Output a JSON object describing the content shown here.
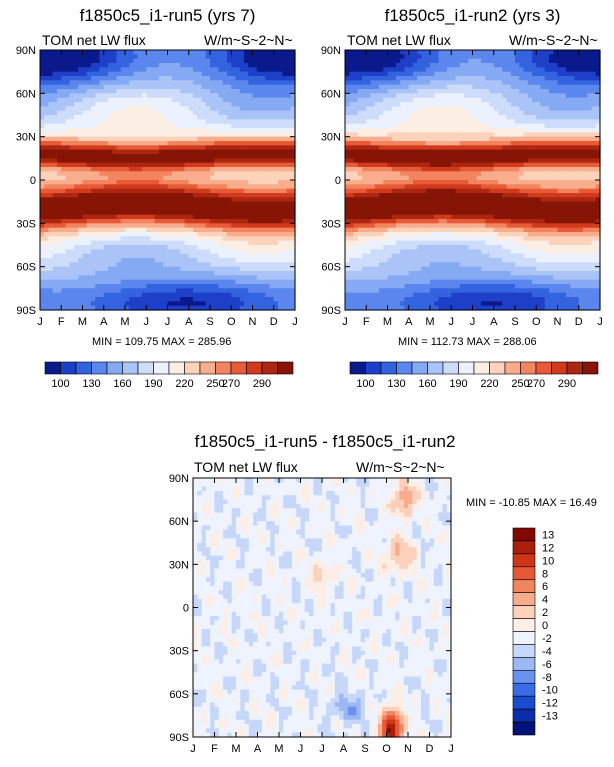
{
  "chart_data": [
    {
      "type": "heatmap",
      "title": "f1850c5_i1-run5 (yrs 7)",
      "left_label": "TOM net LW flux",
      "right_label": "W/m~S~2~N~",
      "stats": "MIN = 109.75 MAX = 285.96",
      "x_ticks": [
        "J",
        "F",
        "M",
        "A",
        "M",
        "J",
        "J",
        "A",
        "S",
        "O",
        "N",
        "D",
        "J"
      ],
      "y_ticks": [
        "90N",
        "60N",
        "30N",
        "0",
        "30S",
        "60S",
        "90S"
      ],
      "colorbar_labels": [
        "100",
        "130",
        "160",
        "190",
        "220",
        "250",
        "270",
        "290"
      ],
      "colorbar_orientation": "horizontal",
      "value_range": [
        109.75,
        285.96
      ]
    },
    {
      "type": "heatmap",
      "title": "f1850c5_i1-run2 (yrs 3)",
      "left_label": "TOM net LW flux",
      "right_label": "W/m~S~2~N~",
      "stats": "MIN = 112.73 MAX = 288.06",
      "x_ticks": [
        "J",
        "F",
        "M",
        "A",
        "M",
        "J",
        "J",
        "A",
        "S",
        "O",
        "N",
        "D",
        "J"
      ],
      "y_ticks": [
        "90N",
        "60N",
        "30N",
        "0",
        "30S",
        "60S",
        "90S"
      ],
      "colorbar_labels": [
        "100",
        "130",
        "160",
        "190",
        "220",
        "250",
        "270",
        "290"
      ],
      "colorbar_orientation": "horizontal",
      "value_range": [
        112.73,
        288.06
      ]
    },
    {
      "type": "heatmap",
      "title": "f1850c5_i1-run5 - f1850c5_i1-run2",
      "left_label": "TOM net LW flux",
      "right_label": "W/m~S~2~N~",
      "stats": "MIN = -10.85 MAX =  16.49",
      "x_ticks": [
        "J",
        "F",
        "M",
        "A",
        "M",
        "J",
        "J",
        "A",
        "S",
        "O",
        "N",
        "D",
        "J"
      ],
      "y_ticks": [
        "90N",
        "60N",
        "30N",
        "0",
        "30S",
        "60S",
        "90S"
      ],
      "colorbar_labels": [
        "13",
        "12",
        "10",
        "8",
        "6",
        "4",
        "2",
        "0",
        "-2",
        "-4",
        "-6",
        "-8",
        "-10",
        "-12",
        "-13"
      ],
      "colorbar_orientation": "vertical",
      "value_range": [
        -10.85,
        16.49
      ]
    }
  ],
  "palettes": {
    "absolute": [
      "#0a1a8c",
      "#1e3fc8",
      "#3463e0",
      "#5b86ee",
      "#86a9f4",
      "#aac4f7",
      "#cddcfa",
      "#ebf1fd",
      "#fdeee4",
      "#fcd2bb",
      "#f8ad8c",
      "#f2855f",
      "#e85a36",
      "#d13a1c",
      "#ad2611",
      "#861506"
    ],
    "difference": [
      "#00137a",
      "#0a2ea8",
      "#1a4bd1",
      "#3a6ce6",
      "#6a93ef",
      "#9bb8f4",
      "#c6d7fa",
      "#eef3fe",
      "#fdeee5",
      "#fbd1bb",
      "#f7ad8d",
      "#f08560",
      "#e65937",
      "#cf3618",
      "#ab200b",
      "#800a02"
    ]
  }
}
